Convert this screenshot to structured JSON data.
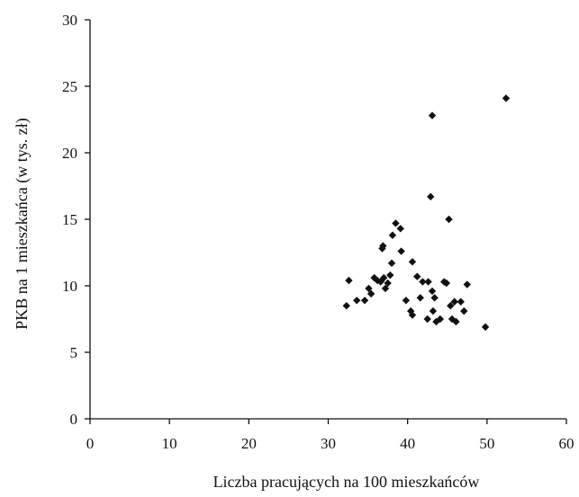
{
  "chart_data": {
    "type": "scatter",
    "title": "",
    "xlabel": "Liczba pracujących na 100 mieszkańców",
    "ylabel": "PKB na 1 mieszkańca (w tys. zł)",
    "xlim": [
      0,
      60
    ],
    "ylim": [
      0,
      30
    ],
    "xticks": [
      0,
      10,
      20,
      30,
      40,
      50,
      60
    ],
    "yticks": [
      0,
      5,
      10,
      15,
      20,
      25,
      30
    ],
    "x_tick_labels": [
      "0",
      "10",
      "20",
      "30",
      "40",
      "50",
      "60"
    ],
    "y_tick_labels": [
      "0",
      "5",
      "10",
      "15",
      "20",
      "25",
      "30"
    ],
    "grid": false,
    "marker": "diamond",
    "marker_color": "#111111",
    "series": [
      {
        "points": [
          [
            32.3,
            8.5
          ],
          [
            32.6,
            10.4
          ],
          [
            33.6,
            8.9
          ],
          [
            34.6,
            8.9
          ],
          [
            35.1,
            9.8
          ],
          [
            35.4,
            9.4
          ],
          [
            35.8,
            10.6
          ],
          [
            36.2,
            10.4
          ],
          [
            36.6,
            10.3
          ],
          [
            36.8,
            12.8
          ],
          [
            36.9,
            13.0
          ],
          [
            37.0,
            10.6
          ],
          [
            37.2,
            9.8
          ],
          [
            37.5,
            10.2
          ],
          [
            37.8,
            10.8
          ],
          [
            38.0,
            11.7
          ],
          [
            38.1,
            13.8
          ],
          [
            38.5,
            14.7
          ],
          [
            39.1,
            14.3
          ],
          [
            39.2,
            12.6
          ],
          [
            39.8,
            8.9
          ],
          [
            40.4,
            8.1
          ],
          [
            40.6,
            7.8
          ],
          [
            40.6,
            11.8
          ],
          [
            41.2,
            10.7
          ],
          [
            41.6,
            9.1
          ],
          [
            41.9,
            10.3
          ],
          [
            42.5,
            7.5
          ],
          [
            42.6,
            10.3
          ],
          [
            42.9,
            16.7
          ],
          [
            43.1,
            22.8
          ],
          [
            43.1,
            9.6
          ],
          [
            43.2,
            8.1
          ],
          [
            43.4,
            9.1
          ],
          [
            43.6,
            7.3
          ],
          [
            44.1,
            7.5
          ],
          [
            44.6,
            10.3
          ],
          [
            44.9,
            10.2
          ],
          [
            45.2,
            15.0
          ],
          [
            45.4,
            8.5
          ],
          [
            45.6,
            7.5
          ],
          [
            45.9,
            8.8
          ],
          [
            46.1,
            7.3
          ],
          [
            46.7,
            8.8
          ],
          [
            47.1,
            8.1
          ],
          [
            47.5,
            10.1
          ],
          [
            49.8,
            6.9
          ],
          [
            52.4,
            24.1
          ]
        ]
      }
    ]
  }
}
